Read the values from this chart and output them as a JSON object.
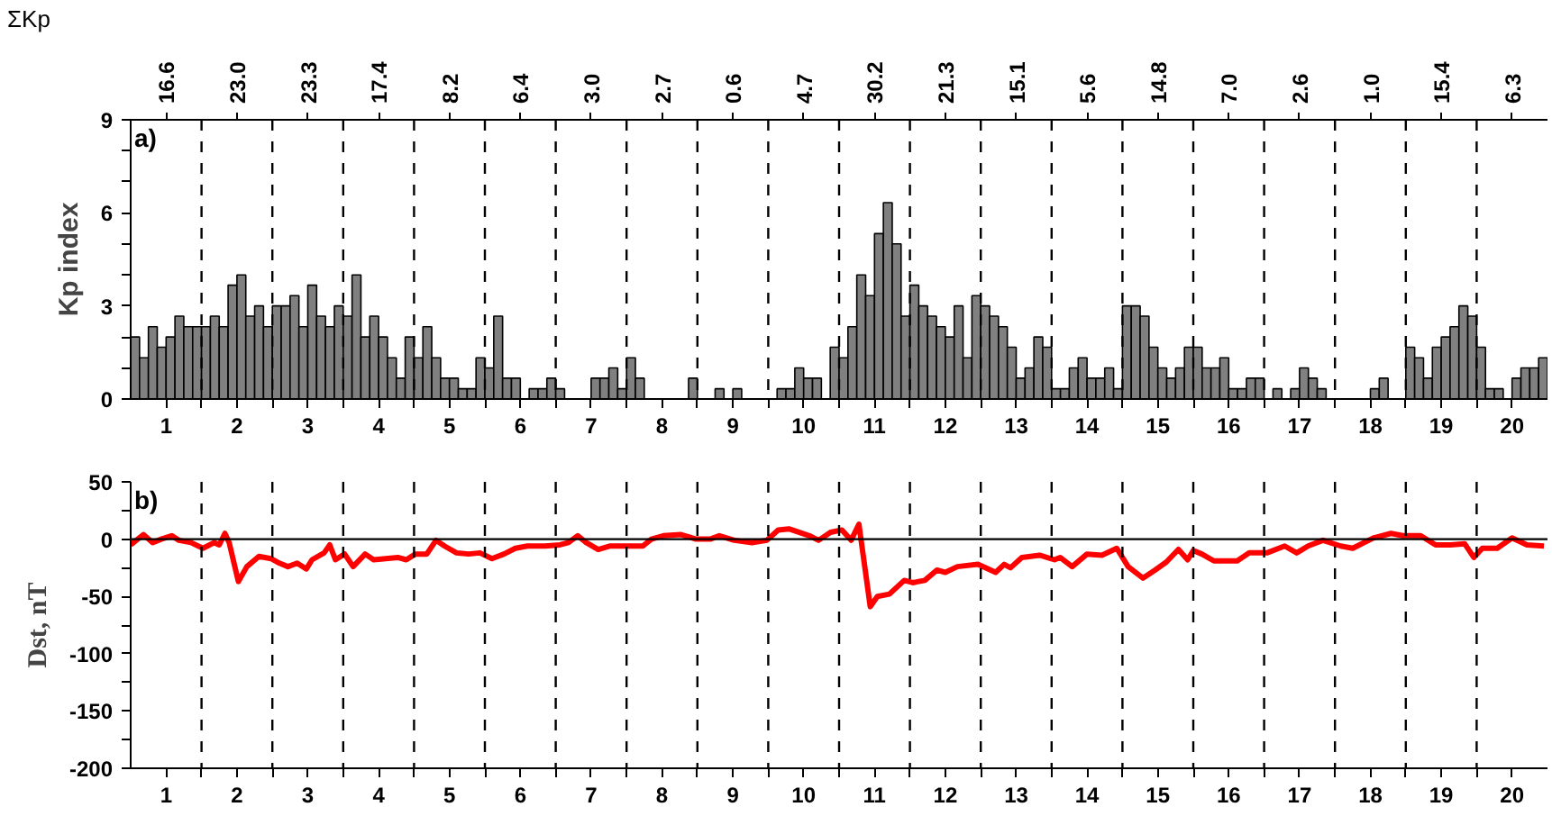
{
  "chart_data": [
    {
      "type": "bar",
      "title": "ΣKp",
      "ylabel": "Kp index",
      "annotations": [
        "a)",
        "16.6",
        "23.0",
        "23.3",
        "17.4",
        "8.2",
        "6.4",
        "3.0",
        "2.7",
        "0.6",
        "4.7",
        "30.2",
        "21.3",
        "15.1",
        "5.6",
        "14.8",
        "7.0",
        "2.6",
        "1.0",
        "15.4",
        "6.3"
      ],
      "color": "#808080",
      "grid": false,
      "x": [
        0.5625,
        0.6875,
        0.8125,
        0.9375,
        1.0625,
        1.1875,
        1.3125,
        1.4375,
        1.5625,
        1.6875,
        1.8125,
        1.9375,
        2.0625,
        2.1875,
        2.3125,
        2.4375,
        2.5625,
        2.6875,
        2.8125,
        2.9375,
        3.0625,
        3.1875,
        3.3125,
        3.4375,
        3.5625,
        3.6875,
        3.8125,
        3.9375,
        4.0625,
        4.1875,
        4.3125,
        4.4375,
        4.5625,
        4.6875,
        4.8125,
        4.9375,
        5.0625,
        5.1875,
        5.3125,
        5.4375,
        5.5625,
        5.6875,
        5.8125,
        5.9375,
        6.0625,
        6.1875,
        6.3125,
        6.4375,
        6.5625,
        6.6875,
        6.8125,
        6.9375,
        7.0625,
        7.1875,
        7.3125,
        7.4375,
        7.5625,
        7.6875,
        7.8125,
        7.9375,
        8.0625,
        8.1875,
        8.3125,
        8.4375,
        8.5625,
        8.6875,
        8.8125,
        8.9375,
        9.0625,
        9.1875,
        9.3125,
        9.4375,
        9.5625,
        9.6875,
        9.8125,
        9.9375,
        10.0625,
        10.1875,
        10.3125,
        10.4375,
        10.5625,
        10.6875,
        10.8125,
        10.9375,
        11.0625,
        11.1875,
        11.3125,
        11.4375,
        11.5625,
        11.6875,
        11.8125,
        11.9375,
        12.0625,
        12.1875,
        12.3125,
        12.4375,
        12.5625,
        12.6875,
        12.8125,
        12.9375,
        13.0625,
        13.1875,
        13.3125,
        13.4375,
        13.5625,
        13.6875,
        13.8125,
        13.9375,
        14.0625,
        14.1875,
        14.3125,
        14.4375,
        14.5625,
        14.6875,
        14.8125,
        14.9375,
        15.0625,
        15.1875,
        15.3125,
        15.4375,
        15.5625,
        15.6875,
        15.8125,
        15.9375,
        16.0625,
        16.1875,
        16.3125,
        16.4375,
        16.5625,
        16.6875,
        16.8125,
        16.9375,
        17.0625,
        17.1875,
        17.3125,
        17.4375,
        17.5625,
        17.6875,
        17.8125,
        17.9375,
        18.0625,
        18.1875,
        18.3125,
        18.4375,
        18.5625,
        18.6875,
        18.8125,
        18.9375,
        19.0625,
        19.1875,
        19.3125,
        19.4375,
        19.5625,
        19.6875,
        19.8125,
        19.9375,
        20.0625,
        20.1875,
        20.3125,
        20.4375
      ],
      "values": [
        2,
        1.33,
        2.33,
        1.67,
        2,
        2.67,
        2.33,
        2.33,
        2.33,
        2.67,
        2.33,
        3.67,
        4,
        2.67,
        3,
        2.33,
        3,
        3,
        3.33,
        2.33,
        3.67,
        2.67,
        2.33,
        3,
        2.67,
        4,
        2,
        2.67,
        2,
        1.33,
        0.67,
        2,
        1.33,
        2.33,
        1.33,
        0.67,
        0.67,
        0.33,
        0.33,
        1.33,
        1,
        2.67,
        0.67,
        0.67,
        0,
        0.33,
        0.33,
        0.67,
        0.33,
        0,
        0,
        0,
        0.67,
        0.67,
        1,
        0.33,
        1.33,
        0.67,
        0,
        0,
        0,
        0,
        0,
        0.67,
        0,
        0,
        0.33,
        0,
        0.33,
        0,
        0,
        0,
        0,
        0.33,
        0.33,
        1,
        0.67,
        0.67,
        0,
        1.67,
        1.33,
        2.33,
        4,
        3.33,
        5.33,
        6.33,
        5,
        2.67,
        3.67,
        3,
        2.67,
        2.33,
        2,
        3,
        1.33,
        3.33,
        3,
        2.67,
        2.33,
        1.67,
        0.67,
        1,
        2,
        1.67,
        0.33,
        0.33,
        1,
        1.33,
        0.67,
        0.67,
        1,
        0.33,
        3,
        3,
        2.67,
        1.67,
        1,
        0.67,
        1,
        1.67,
        1.67,
        1,
        1,
        1.33,
        0.33,
        0.33,
        0.67,
        0.67,
        0,
        0.33,
        0,
        0.33,
        1,
        0.67,
        0.33,
        0,
        0,
        0,
        0,
        0,
        0.33,
        0.67,
        0,
        0,
        1.67,
        1.33,
        0.67,
        1.67,
        2,
        2.33,
        3,
        2.67,
        1.67,
        0.33,
        0.33,
        0,
        0.67,
        1,
        1,
        1.33
      ],
      "xlim": [
        0.5,
        20.5
      ],
      "xticks": [
        1,
        {
          "value": 1.5,
          "label": null
        },
        2,
        {
          "value": 2.5,
          "label": null
        },
        3,
        {
          "value": 3.5,
          "label": null
        },
        4,
        {
          "value": 4.5,
          "label": null
        },
        5,
        {
          "value": 5.5,
          "label": null
        },
        6,
        {
          "value": 6.5,
          "label": null
        },
        7,
        {
          "value": 7.5,
          "label": null
        },
        8,
        {
          "value": 8.5,
          "label": null
        },
        9,
        {
          "value": 9.5,
          "label": null
        },
        10,
        {
          "value": 10.5,
          "label": null
        },
        11,
        {
          "value": 11.5,
          "label": null
        },
        12,
        {
          "value": 12.5,
          "label": null
        },
        13,
        {
          "value": 13.5,
          "label": null
        },
        14,
        {
          "value": 14.5,
          "label": null
        },
        15,
        {
          "value": 15.5,
          "label": null
        },
        16,
        {
          "value": 16.5,
          "label": null
        },
        17,
        {
          "value": 17.5,
          "label": null
        },
        18,
        {
          "value": 18.5,
          "label": null
        },
        19,
        {
          "value": 19.5,
          "label": null
        },
        20
      ],
      "ylim": [
        0,
        9
      ],
      "yticks": [
        0,
        {
          "value": 1,
          "label": null
        },
        {
          "value": 2,
          "label": null
        },
        3,
        {
          "value": 4,
          "label": null
        },
        {
          "value": 5,
          "label": null
        },
        6,
        {
          "value": 7,
          "label": null
        },
        {
          "value": 8,
          "label": null
        },
        9
      ],
      "ref_lines": [
        {
          "axis": "x",
          "value": 1.5,
          "line_style": "dashed",
          "color": "#000000"
        },
        {
          "axis": "x",
          "value": 2.5,
          "line_style": "dashed",
          "color": "#000000"
        },
        {
          "axis": "x",
          "value": 3.5,
          "line_style": "dashed",
          "color": "#000000"
        },
        {
          "axis": "x",
          "value": 4.5,
          "line_style": "dashed",
          "color": "#000000"
        },
        {
          "axis": "x",
          "value": 5.5,
          "line_style": "dashed",
          "color": "#000000"
        },
        {
          "axis": "x",
          "value": 6.5,
          "line_style": "dashed",
          "color": "#000000"
        },
        {
          "axis": "x",
          "value": 7.5,
          "line_style": "dashed",
          "color": "#000000"
        },
        {
          "axis": "x",
          "value": 8.5,
          "line_style": "dashed",
          "color": "#000000"
        },
        {
          "axis": "x",
          "value": 9.5,
          "line_style": "dashed",
          "color": "#000000"
        },
        {
          "axis": "x",
          "value": 10.5,
          "line_style": "dashed",
          "color": "#000000"
        },
        {
          "axis": "x",
          "value": 11.5,
          "line_style": "dashed",
          "color": "#000000"
        },
        {
          "axis": "x",
          "value": 12.5,
          "line_style": "dashed",
          "color": "#000000"
        },
        {
          "axis": "x",
          "value": 13.5,
          "line_style": "dashed",
          "color": "#000000"
        },
        {
          "axis": "x",
          "value": 14.5,
          "line_style": "dashed",
          "color": "#000000"
        },
        {
          "axis": "x",
          "value": 15.5,
          "line_style": "dashed",
          "color": "#000000"
        },
        {
          "axis": "x",
          "value": 16.5,
          "line_style": "dashed",
          "color": "#000000"
        },
        {
          "axis": "x",
          "value": 17.5,
          "line_style": "dashed",
          "color": "#000000"
        },
        {
          "axis": "x",
          "value": 18.5,
          "line_style": "dashed",
          "color": "#000000"
        },
        {
          "axis": "x",
          "value": 19.5,
          "line_style": "dashed",
          "color": "#000000"
        }
      ]
    },
    {
      "type": "line",
      "ylabel": "Dst, nT",
      "annotations": [
        "b)"
      ],
      "color": "#ff0000",
      "grid": false,
      "line_style": "solid",
      "x": [
        0.5,
        0.68,
        0.81,
        0.93,
        1.08,
        1.18,
        1.35,
        1.52,
        1.68,
        1.75,
        1.83,
        1.89,
        2.02,
        2.14,
        2.31,
        2.48,
        2.6,
        2.72,
        2.85,
        2.98,
        3.06,
        3.23,
        3.31,
        3.39,
        3.52,
        3.64,
        3.81,
        3.93,
        4.1,
        4.27,
        4.39,
        4.52,
        4.68,
        4.81,
        4.93,
        5.1,
        5.27,
        5.43,
        5.6,
        5.77,
        5.93,
        6.1,
        6.35,
        6.56,
        6.68,
        6.81,
        6.93,
        7.1,
        7.27,
        7.52,
        7.73,
        7.85,
        8.02,
        8.27,
        8.48,
        8.68,
        8.81,
        9.02,
        9.27,
        9.48,
        9.64,
        9.79,
        10.08,
        10.21,
        10.38,
        10.54,
        10.67,
        10.78,
        10.94,
        11.04,
        11.21,
        11.42,
        11.54,
        11.71,
        11.88,
        12.0,
        12.17,
        12.46,
        12.71,
        12.83,
        12.92,
        13.08,
        13.33,
        13.54,
        13.62,
        13.79,
        14.0,
        14.21,
        14.42,
        14.58,
        14.79,
        14.96,
        15.12,
        15.29,
        15.42,
        15.5,
        15.62,
        15.79,
        16.12,
        16.29,
        16.54,
        16.79,
        16.96,
        17.12,
        17.33,
        17.58,
        17.75,
        18.04,
        18.29,
        18.46,
        18.71,
        18.92,
        19.13,
        19.33,
        19.46,
        19.58,
        19.79,
        20.0,
        20.21,
        20.45
      ],
      "values": [
        -5,
        4,
        -3,
        0,
        3,
        -1,
        -3,
        -8,
        -3,
        -5,
        5,
        -3,
        -37,
        -24,
        -15,
        -17,
        -21,
        -24,
        -21,
        -26,
        -18,
        -12,
        -5,
        -18,
        -13,
        -24,
        -13,
        -18,
        -17,
        -16,
        -18,
        -13,
        -13,
        -1,
        -6,
        -12,
        -13,
        -12,
        -17,
        -13,
        -8,
        -6,
        -6,
        -5,
        -3,
        3,
        -3,
        -9,
        -6,
        -6,
        -6,
        0,
        3,
        4,
        0,
        0,
        3,
        -1,
        -3,
        -1,
        8,
        9,
        3,
        -1,
        6,
        8,
        -1,
        13,
        -59,
        -50,
        -48,
        -36,
        -38,
        -36,
        -27,
        -29,
        -24,
        -22,
        -29,
        -22,
        -25,
        -16,
        -14,
        -18,
        -16,
        -24,
        -13,
        -14,
        -8,
        -24,
        -34,
        -27,
        -20,
        -9,
        -18,
        -10,
        -13,
        -19,
        -19,
        -12,
        -12,
        -6,
        -12,
        -6,
        -1,
        -6,
        -8,
        1,
        5,
        3,
        3,
        -5,
        -5,
        -4,
        -16,
        -8,
        -8,
        1,
        -5,
        -6
      ],
      "xlim": [
        0.5,
        20.5
      ],
      "xticks": [
        1,
        {
          "value": 1.5,
          "label": null
        },
        2,
        {
          "value": 2.5,
          "label": null
        },
        3,
        {
          "value": 3.5,
          "label": null
        },
        4,
        {
          "value": 4.5,
          "label": null
        },
        5,
        {
          "value": 5.5,
          "label": null
        },
        6,
        {
          "value": 6.5,
          "label": null
        },
        7,
        {
          "value": 7.5,
          "label": null
        },
        8,
        {
          "value": 8.5,
          "label": null
        },
        9,
        {
          "value": 9.5,
          "label": null
        },
        10,
        {
          "value": 10.5,
          "label": null
        },
        11,
        {
          "value": 11.5,
          "label": null
        },
        12,
        {
          "value": 12.5,
          "label": null
        },
        13,
        {
          "value": 13.5,
          "label": null
        },
        14,
        {
          "value": 14.5,
          "label": null
        },
        15,
        {
          "value": 15.5,
          "label": null
        },
        16,
        {
          "value": 16.5,
          "label": null
        },
        17,
        {
          "value": 17.5,
          "label": null
        },
        18,
        {
          "value": 18.5,
          "label": null
        },
        19,
        {
          "value": 19.5,
          "label": null
        },
        20
      ],
      "ylim": [
        -200,
        50
      ],
      "yticks": [
        -200,
        {
          "value": -175,
          "label": null
        },
        -150,
        {
          "value": -125,
          "label": null
        },
        -100,
        {
          "value": -75,
          "label": null
        },
        -50,
        {
          "value": -25,
          "label": null
        },
        0,
        {
          "value": 25,
          "label": null
        },
        50
      ],
      "ref_lines": [
        {
          "axis": "y",
          "value": 0,
          "line_style": "solid",
          "color": "#000000"
        },
        {
          "axis": "x",
          "value": 1.5,
          "line_style": "dashed",
          "color": "#000000"
        },
        {
          "axis": "x",
          "value": 2.5,
          "line_style": "dashed",
          "color": "#000000"
        },
        {
          "axis": "x",
          "value": 3.5,
          "line_style": "dashed",
          "color": "#000000"
        },
        {
          "axis": "x",
          "value": 4.5,
          "line_style": "dashed",
          "color": "#000000"
        },
        {
          "axis": "x",
          "value": 5.5,
          "line_style": "dashed",
          "color": "#000000"
        },
        {
          "axis": "x",
          "value": 6.5,
          "line_style": "dashed",
          "color": "#000000"
        },
        {
          "axis": "x",
          "value": 7.5,
          "line_style": "dashed",
          "color": "#000000"
        },
        {
          "axis": "x",
          "value": 8.5,
          "line_style": "dashed",
          "color": "#000000"
        },
        {
          "axis": "x",
          "value": 9.5,
          "line_style": "dashed",
          "color": "#000000"
        },
        {
          "axis": "x",
          "value": 10.5,
          "line_style": "dashed",
          "color": "#000000"
        },
        {
          "axis": "x",
          "value": 11.5,
          "line_style": "dashed",
          "color": "#000000"
        },
        {
          "axis": "x",
          "value": 12.5,
          "line_style": "dashed",
          "color": "#000000"
        },
        {
          "axis": "x",
          "value": 13.5,
          "line_style": "dashed",
          "color": "#000000"
        },
        {
          "axis": "x",
          "value": 14.5,
          "line_style": "dashed",
          "color": "#000000"
        },
        {
          "axis": "x",
          "value": 15.5,
          "line_style": "dashed",
          "color": "#000000"
        },
        {
          "axis": "x",
          "value": 16.5,
          "line_style": "dashed",
          "color": "#000000"
        },
        {
          "axis": "x",
          "value": 17.5,
          "line_style": "dashed",
          "color": "#000000"
        },
        {
          "axis": "x",
          "value": 18.5,
          "line_style": "dashed",
          "color": "#000000"
        },
        {
          "axis": "x",
          "value": 19.5,
          "line_style": "dashed",
          "color": "#000000"
        }
      ]
    }
  ]
}
